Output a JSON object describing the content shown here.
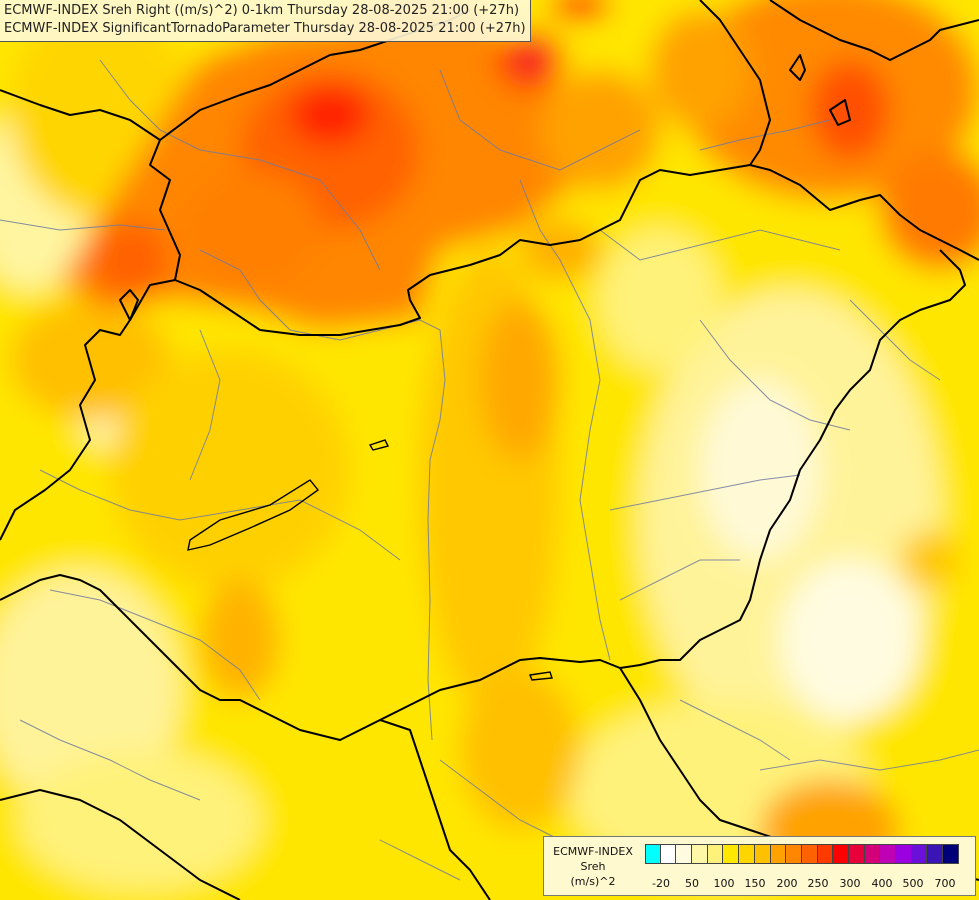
{
  "title_lines": [
    "ECMWF-INDEX Sreh Right ((m/s)^2) 0-1km Thursday 28-08-2025 21:00 (+27h)",
    "ECMWF-INDEX SignificantTornadoParameter Thursday 28-08-2025 21:00 (+27h)"
  ],
  "legend": {
    "source": "ECMWF-INDEX",
    "variable": "Sreh",
    "unit": "(m/s)^2",
    "colors": [
      "#00ffff",
      "#ffffff",
      "#fffbe0",
      "#fff7a8",
      "#fff27a",
      "#ffe800",
      "#ffd500",
      "#ffc000",
      "#ffa200",
      "#ff8600",
      "#ff6200",
      "#ff3a00",
      "#ff0000",
      "#e8003a",
      "#d40078",
      "#c000b4",
      "#9a00e0",
      "#6a10d8",
      "#3a14b4",
      "#000078"
    ],
    "tick_labels": [
      "-20",
      "50",
      "100",
      "150",
      "200",
      "250",
      "300",
      "400",
      "500",
      "700"
    ]
  },
  "colors": {
    "border": "#000000",
    "river": "#6f7aa0",
    "background": "#ffe600"
  }
}
